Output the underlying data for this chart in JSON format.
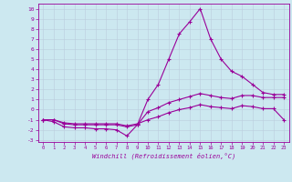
{
  "xlabel": "Windchill (Refroidissement éolien,°C)",
  "bg_color": "#cce8f0",
  "line_color": "#990099",
  "grid_color": "#bbccdd",
  "xlim": [
    -0.5,
    23.5
  ],
  "ylim": [
    -3.2,
    10.5
  ],
  "xticks": [
    0,
    1,
    2,
    3,
    4,
    5,
    6,
    7,
    8,
    9,
    10,
    11,
    12,
    13,
    14,
    15,
    16,
    17,
    18,
    19,
    20,
    21,
    22,
    23
  ],
  "yticks": [
    -3,
    -2,
    -1,
    0,
    1,
    2,
    3,
    4,
    5,
    6,
    7,
    8,
    9,
    10
  ],
  "line1_x": [
    0,
    1,
    2,
    3,
    4,
    5,
    6,
    7,
    8,
    9,
    10,
    11,
    12,
    13,
    14,
    15,
    16,
    17,
    18,
    19,
    20,
    21,
    22,
    23
  ],
  "line1_y": [
    -1.0,
    -1.2,
    -1.7,
    -1.8,
    -1.8,
    -1.9,
    -1.9,
    -2.0,
    -2.6,
    -1.5,
    1.0,
    2.5,
    5.0,
    7.5,
    8.7,
    10.0,
    7.0,
    5.0,
    3.8,
    3.3,
    2.5,
    1.7,
    1.5,
    1.5
  ],
  "line2_x": [
    0,
    1,
    2,
    3,
    4,
    5,
    6,
    7,
    8,
    9,
    10,
    11,
    12,
    13,
    14,
    15,
    16,
    17,
    18,
    19,
    20,
    21,
    22,
    23
  ],
  "line2_y": [
    -1.0,
    -1.0,
    -1.4,
    -1.5,
    -1.5,
    -1.5,
    -1.5,
    -1.5,
    -1.7,
    -1.5,
    -0.2,
    0.2,
    0.7,
    1.0,
    1.3,
    1.6,
    1.4,
    1.2,
    1.1,
    1.4,
    1.4,
    1.2,
    1.2,
    1.2
  ],
  "line3_x": [
    0,
    1,
    2,
    3,
    4,
    5,
    6,
    7,
    8,
    9,
    10,
    11,
    12,
    13,
    14,
    15,
    16,
    17,
    18,
    19,
    20,
    21,
    22,
    23
  ],
  "line3_y": [
    -1.0,
    -1.0,
    -1.3,
    -1.4,
    -1.4,
    -1.4,
    -1.4,
    -1.4,
    -1.6,
    -1.4,
    -1.0,
    -0.7,
    -0.3,
    0.0,
    0.2,
    0.5,
    0.3,
    0.2,
    0.1,
    0.4,
    0.3,
    0.1,
    0.1,
    -1.0
  ]
}
